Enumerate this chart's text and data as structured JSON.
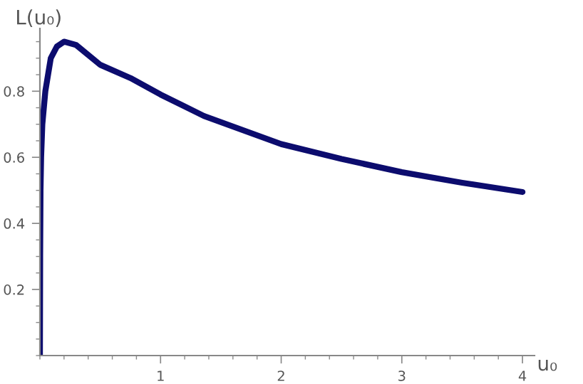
{
  "chart_data": {
    "type": "line",
    "xlabel": "u₀",
    "ylabel": "L(u₀)",
    "x": [
      0,
      0.002,
      0.005,
      0.01,
      0.02,
      0.045,
      0.09,
      0.14,
      0.2,
      0.3,
      0.5,
      0.75,
      1,
      1.36,
      2,
      2.5,
      3,
      3.5,
      4
    ],
    "series": [
      {
        "color": "#0c0c6e",
        "values": [
          0,
          0.3,
          0.5,
          0.6,
          0.7,
          0.8,
          0.9,
          0.935,
          0.95,
          0.94,
          0.88,
          0.84,
          0.79,
          0.725,
          0.64,
          0.595,
          0.555,
          0.523,
          0.495
        ]
      }
    ],
    "xlim": [
      0,
      4.1
    ],
    "ylim": [
      0,
      0.99
    ],
    "xticks": [
      1,
      2,
      3,
      4
    ],
    "yticks": [
      0.2,
      0.4,
      0.6,
      0.8
    ],
    "grid": false,
    "legend": false
  }
}
